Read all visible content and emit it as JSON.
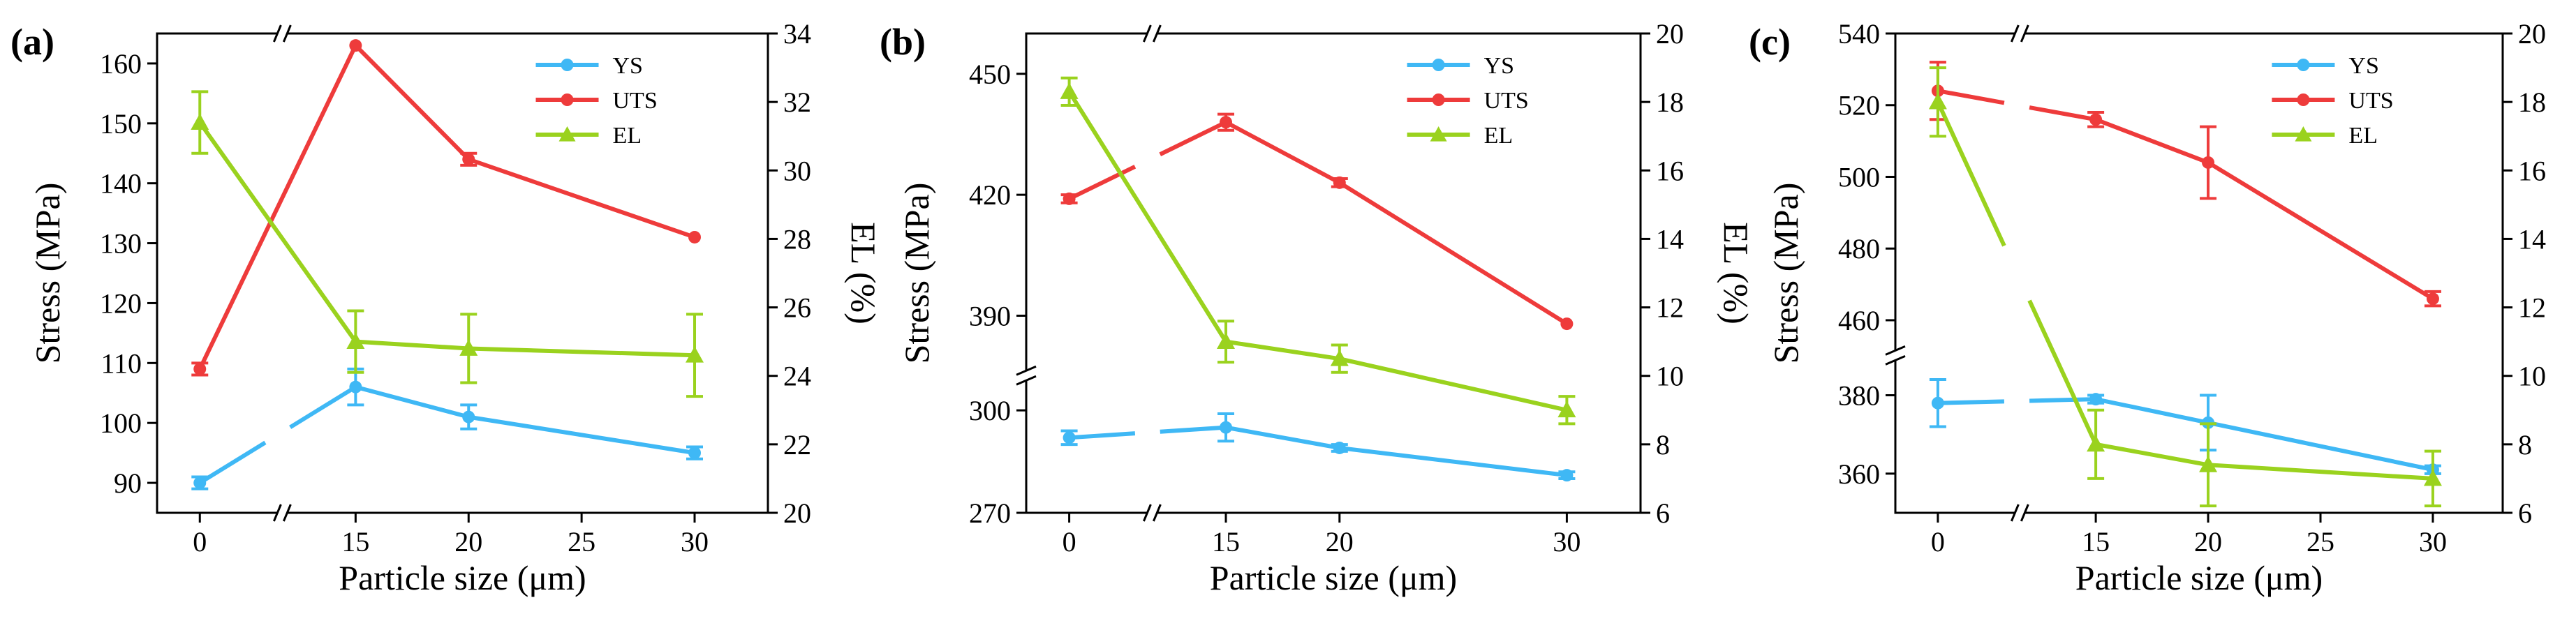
{
  "chart_data": [
    {
      "type": "line",
      "panel": "(a)",
      "x": [
        0,
        15,
        20,
        30
      ],
      "x_ticks": [
        "0",
        "15",
        "20",
        "25",
        "30"
      ],
      "x_tick_values": [
        0,
        15,
        20,
        25,
        30
      ],
      "x_break_after": 0,
      "xlabel": "Particle size (μm)",
      "ylabel_left": "Stress (MPa)",
      "ylabel_right": "EL (%)",
      "left_axis": {
        "segments": [
          {
            "range": [
              85,
              165
            ],
            "ticks": [
              90,
              100,
              110,
              120,
              130,
              140,
              150,
              160
            ],
            "tick_labels": [
              "90",
              "100",
              "110",
              "120",
              "130",
              "140",
              "150",
              "160"
            ]
          }
        ]
      },
      "right_axis": {
        "range": [
          20,
          34
        ],
        "ticks": [
          20,
          22,
          24,
          26,
          28,
          30,
          32,
          34
        ],
        "tick_labels": [
          "20",
          "22",
          "24",
          "26",
          "28",
          "30",
          "32",
          "34"
        ]
      },
      "series": [
        {
          "name": "YS",
          "axis": "left",
          "color": "#3fb8f5",
          "marker": "circle",
          "values": [
            90,
            106,
            101,
            95
          ],
          "errors": [
            1,
            3,
            2,
            1
          ],
          "broken_after": 0
        },
        {
          "name": "UTS",
          "axis": "left",
          "color": "#ee3b3b",
          "marker": "circle",
          "values": [
            109,
            163,
            144,
            131
          ],
          "errors": [
            1,
            0,
            1,
            0
          ],
          "broken_after": -1
        },
        {
          "name": "EL",
          "axis": "right",
          "color": "#9ad21e",
          "marker": "triangle",
          "values": [
            31.4,
            25,
            24.8,
            24.6
          ],
          "errors": [
            0.9,
            0.9,
            1.0,
            1.2
          ],
          "broken_after": -1
        }
      ],
      "legend": [
        "YS",
        "UTS",
        "EL"
      ]
    },
    {
      "type": "line",
      "panel": "(b)",
      "x": [
        0,
        15,
        20,
        30
      ],
      "x_ticks": [
        "0",
        "15",
        "20",
        "30"
      ],
      "x_tick_values": [
        0,
        15,
        20,
        30
      ],
      "x_break_after": 0,
      "xlabel": "Particle size (μm)",
      "ylabel_left": "Stress (MPa)",
      "ylabel_right": "EL (%)",
      "left_axis": {
        "segments": [
          {
            "range": [
              270,
              310
            ],
            "ticks": [
              270,
              300
            ],
            "tick_labels": [
              "270",
              "300"
            ]
          },
          {
            "range": [
              375,
              460
            ],
            "ticks": [
              390,
              420,
              450
            ],
            "tick_labels": [
              "390",
              "420",
              "450"
            ]
          }
        ]
      },
      "right_axis": {
        "range": [
          6,
          20
        ],
        "ticks": [
          6,
          8,
          10,
          12,
          14,
          16,
          18,
          20
        ],
        "tick_labels": [
          "6",
          "8",
          "10",
          "12",
          "14",
          "16",
          "18",
          "20"
        ]
      },
      "series": [
        {
          "name": "YS",
          "axis": "left",
          "color": "#3fb8f5",
          "marker": "circle",
          "values": [
            292,
            295,
            289,
            281
          ],
          "errors": [
            2,
            4,
            1,
            1
          ],
          "broken_after": 0
        },
        {
          "name": "UTS",
          "axis": "left",
          "color": "#ee3b3b",
          "marker": "circle",
          "values": [
            419,
            438,
            423,
            388
          ],
          "errors": [
            1,
            2,
            1,
            0
          ],
          "broken_after": 0
        },
        {
          "name": "EL",
          "axis": "right",
          "color": "#9ad21e",
          "marker": "triangle",
          "values": [
            18.3,
            11.0,
            10.5,
            9.0
          ],
          "errors": [
            0.4,
            0.6,
            0.4,
            0.4
          ],
          "broken_after": -1
        }
      ],
      "legend": [
        "YS",
        "UTS",
        "EL"
      ]
    },
    {
      "type": "line",
      "panel": "(c)",
      "x": [
        0,
        15,
        20,
        30
      ],
      "x_ticks": [
        "0",
        "15",
        "20",
        "25",
        "30"
      ],
      "x_tick_values": [
        0,
        15,
        20,
        25,
        30
      ],
      "x_break_after": 0,
      "xlabel": "Particle size (μm)",
      "ylabel_left": "Stress (MPa)",
      "ylabel_right": "EL (%)",
      "left_axis": {
        "segments": [
          {
            "range": [
              350,
              390
            ],
            "ticks": [
              360,
              380
            ],
            "tick_labels": [
              "360",
              "380"
            ]
          },
          {
            "range": [
              450,
              540
            ],
            "ticks": [
              460,
              480,
              500,
              520,
              540
            ],
            "tick_labels": [
              "460",
              "480",
              "500",
              "520",
              "540"
            ]
          }
        ]
      },
      "right_axis": {
        "range": [
          6,
          20
        ],
        "ticks": [
          6,
          8,
          10,
          12,
          14,
          16,
          18,
          20
        ],
        "tick_labels": [
          "6",
          "8",
          "10",
          "12",
          "14",
          "16",
          "18",
          "20"
        ]
      },
      "series": [
        {
          "name": "YS",
          "axis": "left",
          "color": "#3fb8f5",
          "marker": "circle",
          "values": [
            378,
            379,
            373,
            361
          ],
          "errors": [
            6,
            1,
            7,
            1
          ],
          "broken_after": 0
        },
        {
          "name": "UTS",
          "axis": "left",
          "color": "#ee3b3b",
          "marker": "circle",
          "values": [
            524,
            516,
            504,
            466
          ],
          "errors": [
            8,
            2,
            10,
            2
          ],
          "broken_after": 0
        },
        {
          "name": "EL",
          "axis": "right",
          "color": "#9ad21e",
          "marker": "triangle",
          "values": [
            18.0,
            8.0,
            7.4,
            7.0
          ],
          "errors": [
            1.0,
            1.0,
            1.2,
            0.8
          ],
          "broken_after": 0
        }
      ],
      "legend": [
        "YS",
        "UTS",
        "EL"
      ]
    }
  ]
}
